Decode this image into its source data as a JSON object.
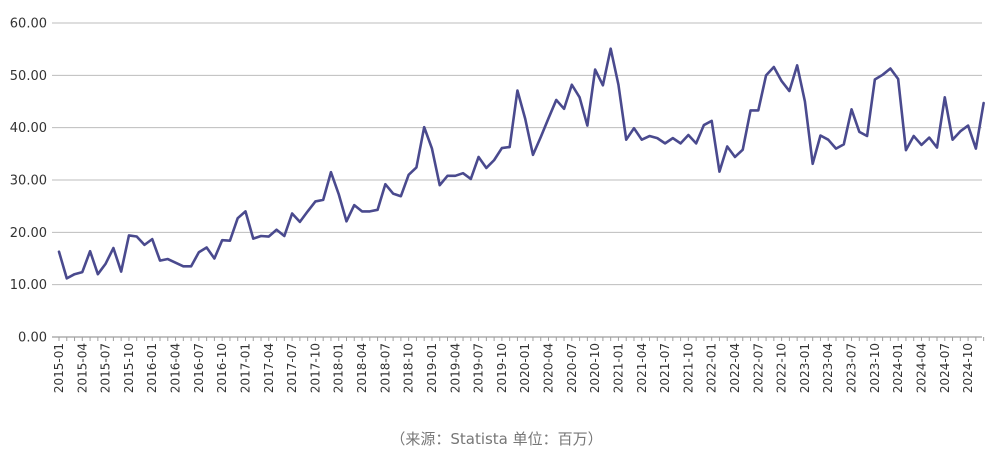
{
  "caption": "（来源：Statista    单位：百万）",
  "chart_data": {
    "type": "line",
    "title": "",
    "xlabel": "",
    "ylabel": "",
    "ylim": [
      0,
      60
    ],
    "yticks": [
      "0.00",
      "10.00",
      "20.00",
      "30.00",
      "40.00",
      "50.00",
      "60.00"
    ],
    "grid": true,
    "colors": {
      "series": "#4a4a8e",
      "grid": "#bdbdbd"
    },
    "x_tick_labels": [
      "2015-01",
      "2015-04",
      "2015-07",
      "2015-10",
      "2016-01",
      "2016-04",
      "2016-07",
      "2016-10",
      "2017-01",
      "2017-04",
      "2017-07",
      "2017-10",
      "2018-01",
      "2018-04",
      "2018-07",
      "2018-10",
      "2019-01",
      "2019-04",
      "2019-07",
      "2019-10",
      "2020-01",
      "2020-04",
      "2020-07",
      "2020-10",
      "2021-01",
      "2021-04",
      "2021-07",
      "2021-10",
      "2022-01",
      "2022-04",
      "2022-07",
      "2022-10",
      "2023-01",
      "2023-04",
      "2023-07",
      "2023-10",
      "2024-01",
      "2024-04",
      "2024-07",
      "2024-10"
    ],
    "start_month": "2015-01",
    "values": [
      16.3,
      11.2,
      12.0,
      12.4,
      16.4,
      12.0,
      14.0,
      17.0,
      12.5,
      19.4,
      19.2,
      17.6,
      18.7,
      14.6,
      14.9,
      14.2,
      13.5,
      13.5,
      16.2,
      17.1,
      15.0,
      18.5,
      18.4,
      22.7,
      24.0,
      18.8,
      19.3,
      19.2,
      20.5,
      19.3,
      23.6,
      22.0,
      24.0,
      25.9,
      26.2,
      31.5,
      27.3,
      22.1,
      25.2,
      24.0,
      24.0,
      24.3,
      29.2,
      27.4,
      26.9,
      31.0,
      32.4,
      40.1,
      36.0,
      29.0,
      30.8,
      30.8,
      31.3,
      30.2,
      34.4,
      32.3,
      33.8,
      36.1,
      36.3,
      47.1,
      41.7,
      34.8,
      38.2,
      41.8,
      45.3,
      43.6,
      48.2,
      45.8,
      40.4,
      51.1,
      48.1,
      55.1,
      48.2,
      37.7,
      39.9,
      37.7,
      38.4,
      38.0,
      37.0,
      38.0,
      37.0,
      38.6,
      37.0,
      40.5,
      41.3,
      31.6,
      36.4,
      34.4,
      35.8,
      43.3,
      43.3,
      50.0,
      51.6,
      48.9,
      47.0,
      51.9,
      45.0,
      33.1,
      38.5,
      37.7,
      36.0,
      36.8,
      43.5,
      39.2,
      38.4,
      49.2,
      50.1,
      51.3,
      49.3,
      35.7,
      38.4,
      36.7,
      38.1,
      36.2,
      45.8,
      37.7,
      39.3,
      40.4,
      36.0,
      44.7
    ]
  }
}
